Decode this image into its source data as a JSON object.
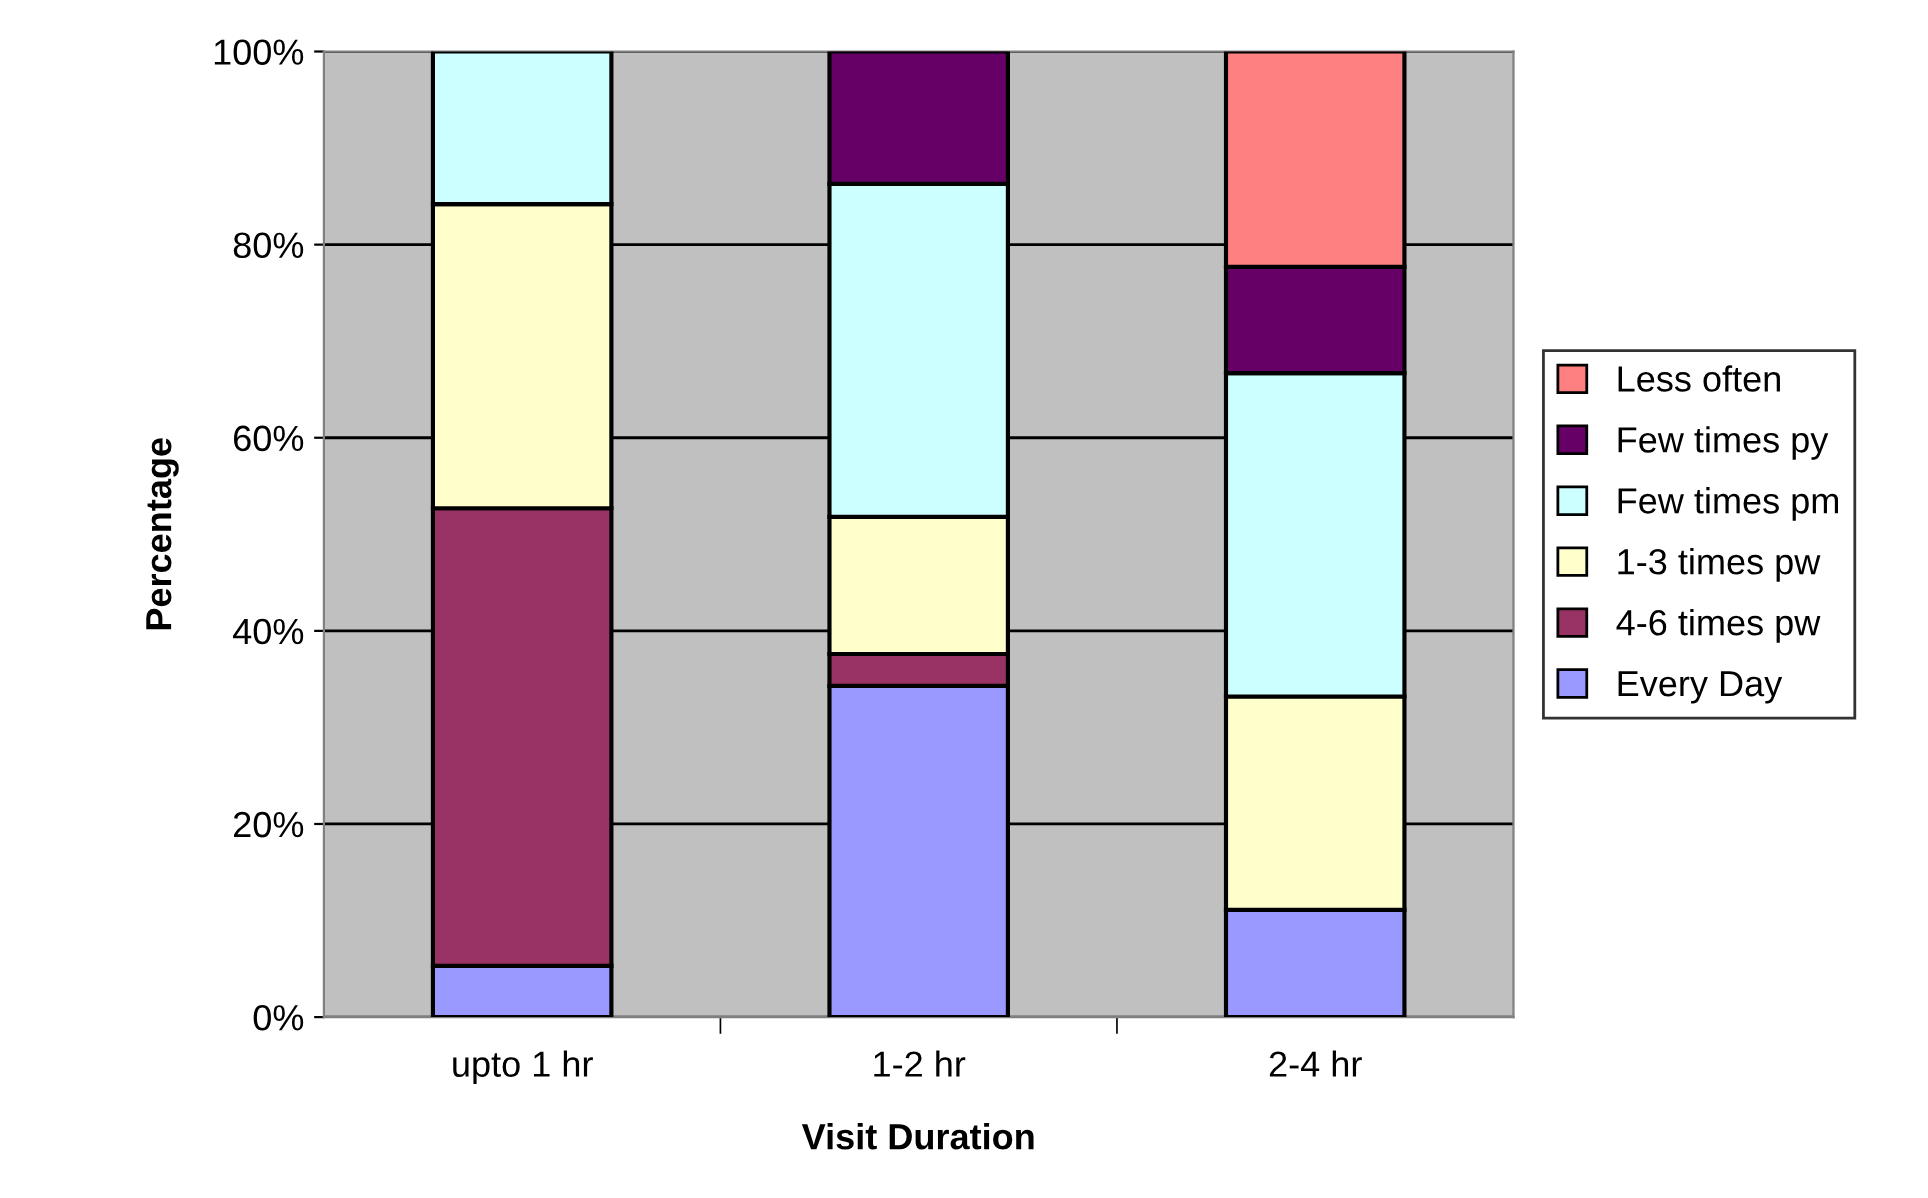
{
  "chart_data": {
    "type": "bar",
    "stacked": true,
    "xlabel": "Visit Duration",
    "ylabel": "Percentage",
    "categories": [
      "upto 1 hr",
      "1-2 hr",
      "2-4 hr"
    ],
    "series": [
      {
        "name": "Every Day",
        "color": "#9999ff",
        "values": [
          5.3,
          34.3,
          11.1
        ]
      },
      {
        "name": "4-6 times pw",
        "color": "#993366",
        "values": [
          47.4,
          3.3,
          null
        ]
      },
      {
        "name": "1-3 times pw",
        "color": "#ffffcc",
        "values": [
          31.5,
          14.2,
          22.1
        ]
      },
      {
        "name": "Few times pm",
        "color": "#ccffff",
        "values": [
          15.8,
          34.5,
          33.5
        ]
      },
      {
        "name": "Few times py",
        "color": "#660066",
        "values": [
          null,
          13.7,
          11.0
        ]
      },
      {
        "name": "Less often",
        "color": "#ff8080",
        "values": [
          null,
          null,
          22.3
        ]
      }
    ],
    "ylim": [
      0,
      100
    ],
    "yticks": [
      {
        "value": 0,
        "label": "0%"
      },
      {
        "value": 20,
        "label": "20%"
      },
      {
        "value": 40,
        "label": "40%"
      },
      {
        "value": 60,
        "label": "60%"
      },
      {
        "value": 80,
        "label": "80%"
      },
      {
        "value": 100,
        "label": "100%"
      }
    ],
    "grid": "y",
    "legend": "right"
  }
}
